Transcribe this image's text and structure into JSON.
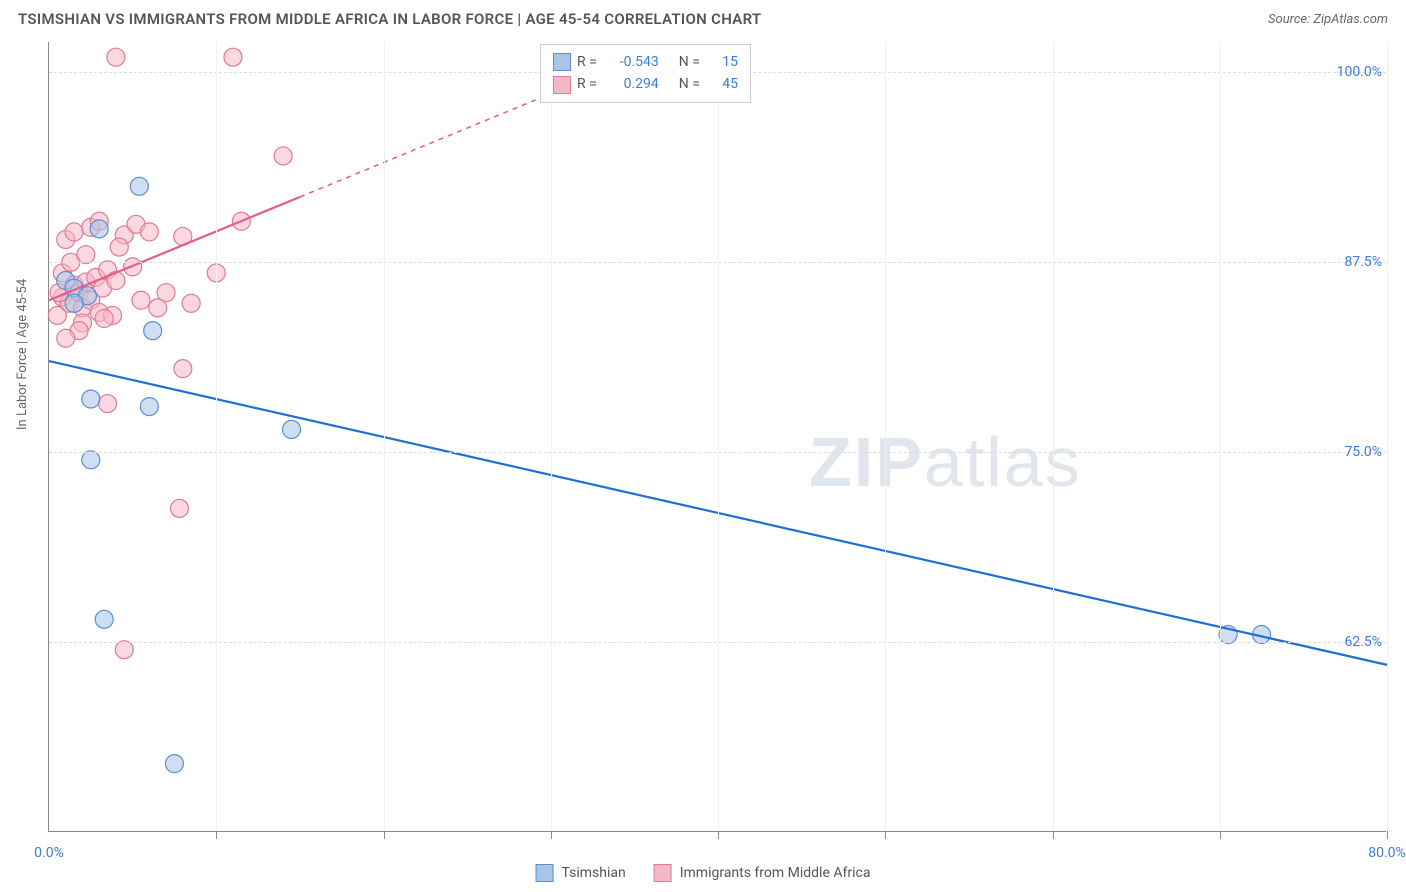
{
  "title": "TSIMSHIAN VS IMMIGRANTS FROM MIDDLE AFRICA IN LABOR FORCE | AGE 45-54 CORRELATION CHART",
  "source_label": "Source: ZipAtlas.com",
  "watermark": {
    "part1": "ZIP",
    "part2": "atlas"
  },
  "y_axis_title": "In Labor Force | Age 45-54",
  "chart": {
    "type": "scatter",
    "xlim": [
      0,
      80
    ],
    "ylim": [
      50,
      102
    ],
    "x_ticks": [
      0,
      10,
      20,
      30,
      40,
      50,
      60,
      70,
      80
    ],
    "x_tick_labels_shown": {
      "0": "0.0%",
      "80": "80.0%"
    },
    "y_gridlines": [
      62.5,
      75.0,
      87.5,
      100.0
    ],
    "y_tick_labels": [
      "62.5%",
      "75.0%",
      "87.5%",
      "100.0%"
    ],
    "background_color": "#ffffff",
    "grid_color": "#dddddd",
    "axis_color": "#888888",
    "label_color": "#3b7dd8",
    "marker_radius": 9,
    "marker_opacity": 0.55,
    "line_width": 2.2
  },
  "series": [
    {
      "name": "Tsimshian",
      "color_fill": "#a8c5e8",
      "color_stroke": "#5b8fd0",
      "line_color": "#1f6fd4",
      "R": "-0.543",
      "N": "15",
      "points": [
        [
          1.0,
          86.3
        ],
        [
          1.5,
          85.8
        ],
        [
          2.3,
          85.3
        ],
        [
          3.0,
          89.7
        ],
        [
          5.4,
          92.5
        ],
        [
          6.2,
          83.0
        ],
        [
          2.5,
          78.5
        ],
        [
          6.0,
          78.0
        ],
        [
          2.5,
          74.5
        ],
        [
          14.5,
          76.5
        ],
        [
          3.3,
          64.0
        ],
        [
          7.5,
          54.5
        ],
        [
          70.5,
          63.0
        ],
        [
          72.5,
          63.0
        ],
        [
          1.5,
          84.8
        ]
      ],
      "trend": {
        "x1": 0,
        "y1": 81.0,
        "x2": 80,
        "y2": 61.0
      }
    },
    {
      "name": "Immigrants from Middle Africa",
      "color_fill": "#f5b8c6",
      "color_stroke": "#e07a94",
      "line_color": "#e85a8a",
      "R": "0.294",
      "N": "45",
      "points": [
        [
          0.8,
          85.2
        ],
        [
          1.2,
          84.8
        ],
        [
          1.5,
          86.0
        ],
        [
          1.8,
          85.5
        ],
        [
          2.0,
          84.5
        ],
        [
          2.2,
          86.2
        ],
        [
          2.5,
          85.0
        ],
        [
          2.8,
          86.5
        ],
        [
          3.0,
          84.2
        ],
        [
          3.2,
          85.8
        ],
        [
          3.5,
          87.0
        ],
        [
          3.8,
          84.0
        ],
        [
          4.0,
          86.3
        ],
        [
          1.0,
          89.0
        ],
        [
          1.5,
          89.5
        ],
        [
          2.5,
          89.8
        ],
        [
          3.0,
          90.2
        ],
        [
          4.5,
          89.3
        ],
        [
          5.2,
          90.0
        ],
        [
          6.0,
          89.5
        ],
        [
          8.0,
          89.2
        ],
        [
          7.0,
          85.5
        ],
        [
          8.5,
          84.8
        ],
        [
          10.0,
          86.8
        ],
        [
          11.5,
          90.2
        ],
        [
          4.0,
          101.0
        ],
        [
          11.0,
          101.0
        ],
        [
          14.0,
          94.5
        ],
        [
          8.0,
          80.5
        ],
        [
          3.5,
          78.2
        ],
        [
          4.5,
          62.0
        ],
        [
          7.8,
          71.3
        ],
        [
          2.0,
          83.5
        ],
        [
          0.5,
          84.0
        ],
        [
          0.8,
          86.8
        ],
        [
          1.3,
          87.5
        ],
        [
          2.2,
          88.0
        ],
        [
          4.2,
          88.5
        ],
        [
          5.0,
          87.2
        ],
        [
          5.5,
          85.0
        ],
        [
          6.5,
          84.5
        ],
        [
          1.8,
          83.0
        ],
        [
          1.0,
          82.5
        ],
        [
          0.6,
          85.5
        ],
        [
          3.3,
          83.8
        ]
      ],
      "trend_solid": {
        "x1": 0,
        "y1": 85.0,
        "x2": 15,
        "y2": 91.8
      },
      "trend_dash": {
        "x1": 15,
        "y1": 91.8,
        "x2": 30,
        "y2": 98.6
      }
    }
  ],
  "legend_bottom": [
    {
      "label": "Tsimshian",
      "fill": "#a8c5e8",
      "stroke": "#5b8fd0"
    },
    {
      "label": "Immigrants from Middle Africa",
      "fill": "#f5b8c6",
      "stroke": "#e07a94"
    }
  ]
}
